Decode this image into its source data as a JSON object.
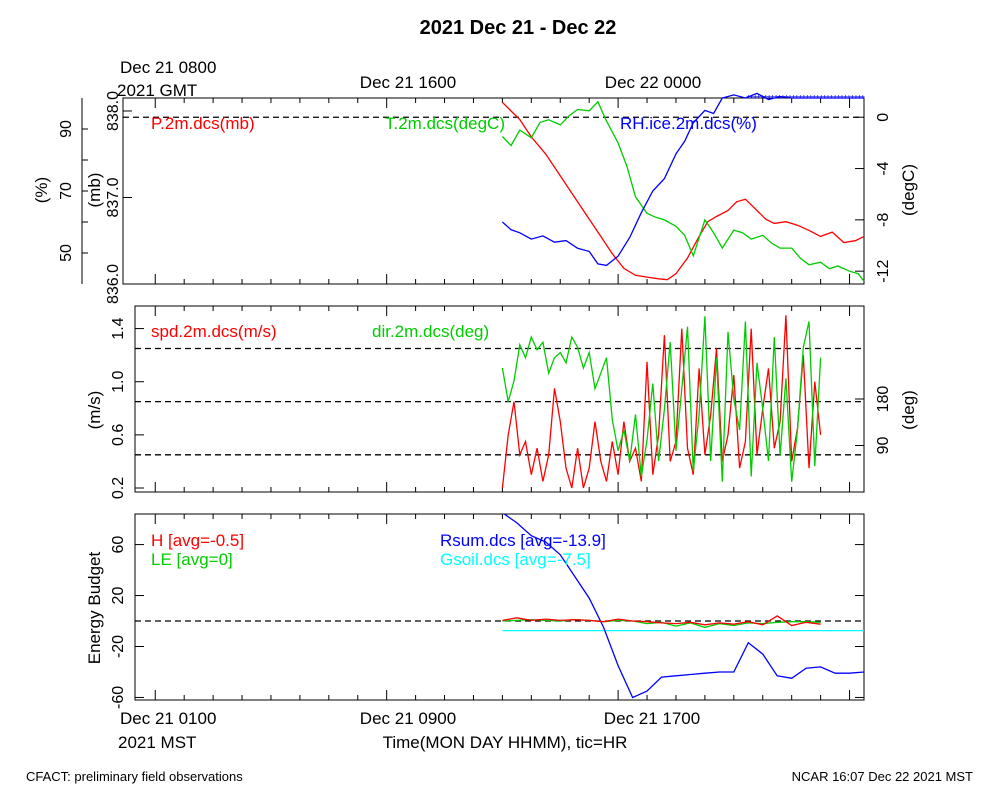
{
  "title": "2021 Dec 21 - Dec 22",
  "top_axis": {
    "first_label": [
      "Dec 21 0800",
      "2021 GMT"
    ],
    "labels": [
      "Dec 21 1600",
      "Dec 22 0000"
    ]
  },
  "bottom_axis": {
    "first_label": [
      "Dec 21 0100",
      "2021 MST"
    ],
    "labels": [
      "Dec 21 0900",
      "Dec 21 1700"
    ],
    "xlabel": "Time(MON DAY HHMM), tic=HR"
  },
  "footer_left": "CFACT: preliminary field observations",
  "footer_right": "NCAR 16:07 Dec 22 2021 MST",
  "colors": {
    "red": "#ff0000",
    "green": "#00cc00",
    "blue": "#0000ff",
    "cyan": "#00ffff",
    "black": "#000000"
  },
  "chart_data": [
    {
      "type": "line",
      "x_unit": "hours since Dec 21 0000 MST",
      "xlim": [
        0.3,
        25.5
      ],
      "axes": {
        "left_mb": {
          "label": "(mb)",
          "ticks": [
            "836.0",
            "837.0",
            "838.0"
          ],
          "ylim": [
            836.0,
            838.15
          ]
        },
        "left_pct": {
          "label": "(%)",
          "ticks": [
            "50",
            "70",
            "90"
          ],
          "ylim": [
            40,
            100
          ]
        },
        "right_degC": {
          "label": "(degC)",
          "ticks": [
            "-12",
            "-8",
            "-4",
            "0"
          ],
          "ylim": [
            -13,
            1.5
          ]
        }
      },
      "reference_lines": [
        {
          "axis": "right_degC",
          "y": 0
        }
      ],
      "series": [
        {
          "name": "P.2m.dcs(mb)",
          "axis": "left_mb",
          "color": "red",
          "x": [
            13.0,
            13.3,
            13.6,
            14.0,
            14.5,
            15.0,
            15.5,
            16.0,
            16.4,
            16.8,
            17.2,
            17.6,
            18.0,
            18.4,
            18.7,
            19.0,
            19.4,
            19.8,
            20.1,
            20.4,
            20.8,
            21.1,
            21.4,
            21.8,
            22.1,
            22.4,
            22.8,
            23.2,
            23.6,
            24.0,
            24.4,
            24.8,
            25.2,
            25.5
          ],
          "y": [
            838.1,
            838.0,
            837.9,
            837.7,
            837.5,
            837.25,
            837.0,
            836.75,
            836.55,
            836.35,
            836.18,
            836.1,
            836.08,
            836.06,
            836.05,
            836.12,
            836.3,
            836.55,
            836.72,
            836.78,
            836.85,
            836.95,
            836.98,
            836.85,
            836.75,
            836.7,
            836.72,
            836.68,
            836.62,
            836.55,
            836.6,
            836.48,
            836.5,
            836.55
          ]
        },
        {
          "name": "T.2m.dcs(degC)",
          "axis": "right_degC",
          "color": "green",
          "x": [
            13.0,
            13.3,
            13.6,
            14.0,
            14.3,
            14.6,
            15.0,
            15.3,
            15.6,
            16.0,
            16.3,
            16.6,
            17.0,
            17.3,
            17.6,
            18.0,
            18.3,
            18.6,
            19.0,
            19.3,
            19.6,
            20.0,
            20.3,
            20.6,
            21.0,
            21.3,
            21.6,
            22.0,
            22.3,
            22.6,
            23.0,
            23.3,
            23.6,
            24.0,
            24.3,
            24.6,
            25.0,
            25.3,
            25.5
          ],
          "y": [
            -1.5,
            -2.2,
            -1.0,
            -1.6,
            -0.4,
            -0.2,
            -0.6,
            0.1,
            0.6,
            0.5,
            1.2,
            -0.3,
            -2.0,
            -3.8,
            -6.2,
            -7.5,
            -7.8,
            -8.0,
            -8.5,
            -9.2,
            -10.8,
            -8.0,
            -9.0,
            -10.2,
            -8.8,
            -9.0,
            -9.5,
            -9.2,
            -9.8,
            -10.2,
            -10.2,
            -11.0,
            -11.5,
            -11.3,
            -11.8,
            -11.6,
            -12.0,
            -12.2,
            -12.8
          ]
        },
        {
          "name": "RH.ice.2m.dcs(%)",
          "axis": "left_pct",
          "color": "blue",
          "x": [
            13.0,
            13.3,
            13.6,
            14.0,
            14.4,
            14.8,
            15.2,
            15.6,
            16.0,
            16.3,
            16.6,
            17.0,
            17.4,
            17.8,
            18.2,
            18.6,
            19.0,
            19.3,
            19.6,
            20.0,
            20.3,
            20.6,
            21.0,
            21.4,
            21.8,
            22.2,
            22.6,
            23.0,
            23.5,
            24.0,
            24.5,
            25.0,
            25.5
          ],
          "y": [
            60.0,
            57.5,
            56.5,
            54.5,
            55.5,
            53.5,
            54.0,
            51.5,
            50.5,
            46.5,
            46.0,
            49.0,
            55.0,
            63.0,
            70.0,
            74.0,
            82.0,
            86.0,
            92.0,
            96.0,
            95.0,
            100.0,
            101.0,
            100.0,
            101.5,
            99.5,
            100.5,
            100.0,
            100.0,
            100.0,
            100.0,
            100.0,
            100.0
          ]
        }
      ]
    },
    {
      "type": "line",
      "x_unit": "hours since Dec 21 0000 MST",
      "xlim": [
        0.3,
        25.5
      ],
      "axes": {
        "left_ms": {
          "label": "(m/s)",
          "ticks": [
            "0.2",
            "0.6",
            "1.0",
            "1.4"
          ],
          "ylim": [
            0.17,
            1.57
          ]
        },
        "right_deg": {
          "label": "(deg)",
          "ticks": [
            "90",
            "180"
          ],
          "ylim": [
            0,
            360
          ]
        }
      },
      "reference_lines": [
        {
          "axis": "left_ms",
          "y": 1.25
        },
        {
          "axis": "left_ms",
          "y": 0.85
        },
        {
          "axis": "left_ms",
          "y": 0.45
        }
      ],
      "series": [
        {
          "name": "spd.2m.dcs(m/s)",
          "axis": "left_ms",
          "color": "red",
          "x": [
            13.0,
            13.2,
            13.4,
            13.6,
            13.8,
            14.0,
            14.2,
            14.4,
            14.6,
            14.8,
            15.0,
            15.2,
            15.4,
            15.6,
            15.8,
            16.0,
            16.2,
            16.4,
            16.6,
            16.8,
            17.0,
            17.2,
            17.4,
            17.6,
            17.8,
            18.0,
            18.2,
            18.4,
            18.6,
            18.8,
            19.0,
            19.2,
            19.4,
            19.6,
            19.8,
            20.0,
            20.2,
            20.4,
            20.6,
            20.8,
            21.0,
            21.2,
            21.4,
            21.6,
            21.8,
            22.0,
            22.2,
            22.4,
            22.6,
            22.8,
            23.0,
            23.2,
            23.4,
            23.6,
            23.8,
            24.0
          ],
          "y": [
            0.2,
            0.6,
            0.85,
            0.45,
            0.55,
            0.3,
            0.5,
            0.25,
            0.45,
            0.95,
            0.7,
            0.35,
            0.2,
            0.5,
            0.2,
            0.35,
            0.7,
            0.4,
            0.25,
            0.55,
            0.3,
            0.7,
            0.4,
            0.5,
            0.25,
            1.15,
            0.3,
            0.6,
            1.35,
            0.4,
            0.55,
            1.4,
            0.5,
            0.3,
            1.1,
            0.45,
            0.75,
            1.25,
            0.4,
            0.6,
            1.05,
            0.35,
            0.55,
            1.4,
            0.45,
            0.8,
            1.1,
            0.5,
            0.7,
            1.5,
            0.4,
            0.65,
            1.2,
            0.35,
            1.0,
            0.6
          ]
        },
        {
          "name": "dir.2m.dcs(deg)",
          "axis": "right_deg",
          "color": "green",
          "x": [
            13.0,
            13.2,
            13.4,
            13.6,
            13.8,
            14.0,
            14.2,
            14.4,
            14.6,
            14.8,
            15.0,
            15.2,
            15.4,
            15.6,
            15.8,
            16.0,
            16.2,
            16.4,
            16.6,
            16.8,
            17.0,
            17.2,
            17.4,
            17.6,
            17.8,
            18.0,
            18.2,
            18.4,
            18.6,
            18.8,
            19.0,
            19.2,
            19.4,
            19.6,
            19.8,
            20.0,
            20.2,
            20.4,
            20.6,
            20.8,
            21.0,
            21.2,
            21.4,
            21.6,
            21.8,
            22.0,
            22.2,
            22.4,
            22.6,
            22.8,
            23.0,
            23.2,
            23.4,
            23.6,
            23.8,
            24.0
          ],
          "y": [
            240,
            175,
            215,
            285,
            260,
            300,
            275,
            290,
            230,
            260,
            270,
            250,
            300,
            280,
            240,
            270,
            200,
            230,
            260,
            140,
            80,
            120,
            60,
            150,
            30,
            100,
            210,
            60,
            160,
            290,
            80,
            200,
            320,
            40,
            150,
            340,
            60,
            260,
            20,
            310,
            180,
            120,
            330,
            30,
            250,
            160,
            60,
            300,
            70,
            220,
            20,
            120,
            280,
            330,
            50,
            260
          ]
        }
      ]
    },
    {
      "type": "line",
      "x_unit": "hours since Dec 21 0000 MST",
      "xlim": [
        0.3,
        25.5
      ],
      "ylabel": "Energy Budget",
      "yticks": [
        "-60",
        "-20",
        "20",
        "60"
      ],
      "ylim": [
        -62,
        84
      ],
      "reference_lines": [
        {
          "y": 0
        }
      ],
      "series": [
        {
          "name": "H",
          "legend": "H [avg=-0.5]",
          "color": "red",
          "x": [
            13.0,
            13.5,
            14.0,
            14.5,
            15.0,
            15.5,
            16.0,
            16.5,
            17.0,
            17.5,
            18.0,
            18.5,
            19.0,
            19.5,
            20.0,
            20.5,
            21.0,
            21.5,
            22.0,
            22.5,
            23.0,
            23.5,
            24.0
          ],
          "y": [
            0.5,
            2.5,
            0.5,
            1.5,
            0.5,
            1.0,
            0.5,
            -0.5,
            1.5,
            0.0,
            -0.5,
            -1.5,
            -2.0,
            -1.0,
            -3.0,
            -1.5,
            -2.5,
            -0.5,
            -3.0,
            4.0,
            -3.5,
            -1.0,
            -2.5
          ]
        },
        {
          "name": "LE",
          "legend": "LE [avg=0]",
          "color": "green",
          "x": [
            13.0,
            13.5,
            14.0,
            14.5,
            15.0,
            15.5,
            16.0,
            16.5,
            17.0,
            17.5,
            18.0,
            18.5,
            19.0,
            19.5,
            20.0,
            20.5,
            21.0,
            21.5,
            22.0,
            22.5,
            23.0,
            23.5,
            24.0
          ],
          "y": [
            0.0,
            0.5,
            1.0,
            0.5,
            0.0,
            1.0,
            0.5,
            -0.5,
            0.5,
            0.0,
            -2.0,
            -1.0,
            -4.0,
            -1.5,
            -5.0,
            -2.0,
            -3.5,
            -1.5,
            -2.0,
            -1.0,
            -0.5,
            -0.5,
            -1.0
          ]
        },
        {
          "name": "Rsum.dcs",
          "legend": "Rsum.dcs [avg=-13.9]",
          "color": "blue",
          "x": [
            13.0,
            13.5,
            14.0,
            14.5,
            15.0,
            15.5,
            16.0,
            16.5,
            17.0,
            17.5,
            18.0,
            18.5,
            19.0,
            19.5,
            20.0,
            20.5,
            21.0,
            21.5,
            22.0,
            22.5,
            23.0,
            23.5,
            24.0,
            24.5,
            25.0,
            25.5
          ],
          "y": [
            85.0,
            77.0,
            67.0,
            62.0,
            52.0,
            35.0,
            18.0,
            -5.0,
            -35.0,
            -60.0,
            -55.0,
            -44.0,
            -43.0,
            -42.0,
            -41.0,
            -40.0,
            -40.0,
            -17.0,
            -26.0,
            -43.0,
            -45.0,
            -37.0,
            -36.0,
            -41.0,
            -41.0,
            -40.0
          ]
        },
        {
          "name": "Gsoil.dcs",
          "legend": "Gsoil.dcs [avg=-7.5]",
          "color": "cyan",
          "x": [
            13.0,
            25.5
          ],
          "y": [
            -7.5,
            -7.5
          ]
        }
      ]
    }
  ]
}
